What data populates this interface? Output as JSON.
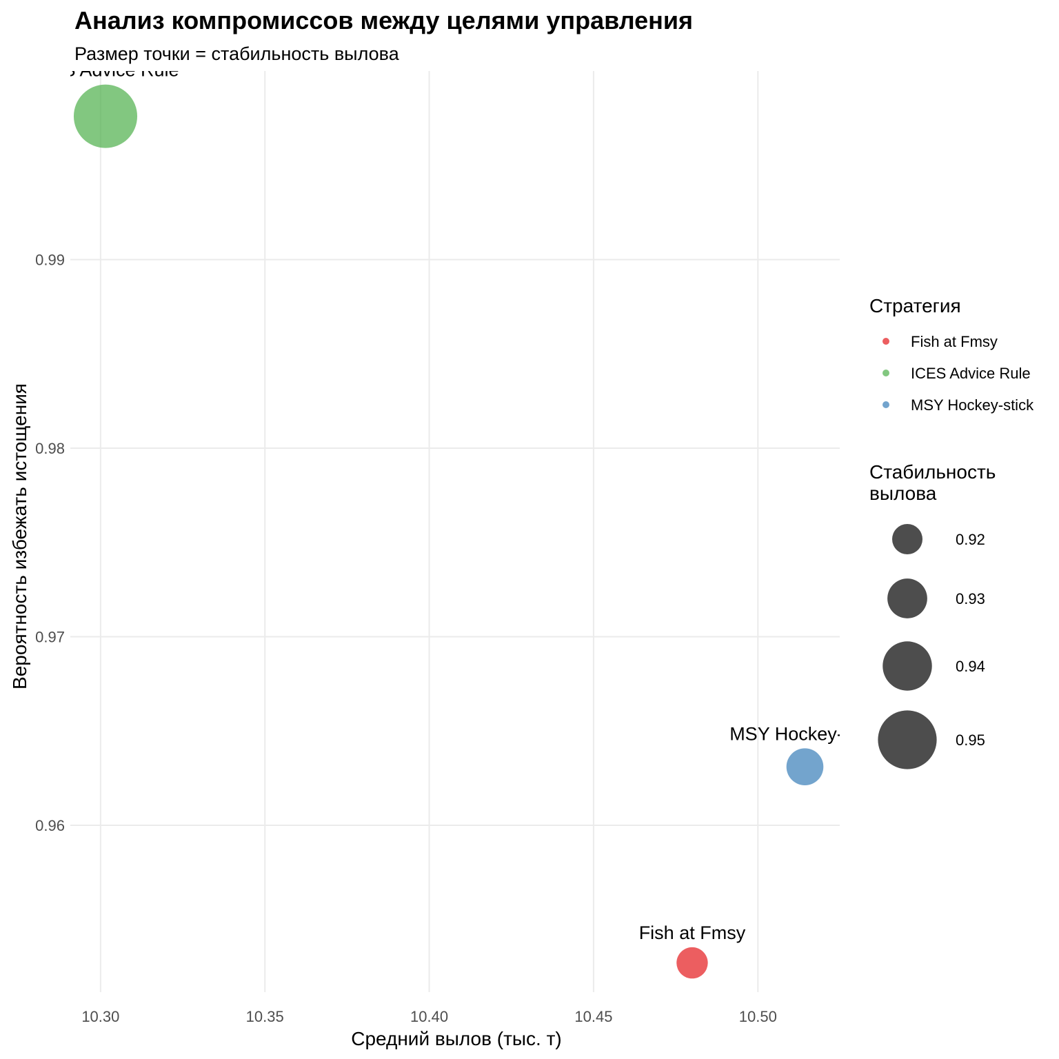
{
  "chart_data": {
    "type": "scatter",
    "title": "Анализ компромиссов между целями управления",
    "subtitle": "Размер точки = стабильность вылова",
    "xlabel": "Средний вылов (тыс. т)",
    "ylabel": "Вероятность избежать истощения",
    "x_ticks": [
      10.3,
      10.35,
      10.4,
      10.45,
      10.5
    ],
    "x_tick_labels": [
      "10.30",
      "10.35",
      "10.40",
      "10.45",
      "10.50"
    ],
    "y_ticks": [
      0.96,
      0.97,
      0.98,
      0.99
    ],
    "y_tick_labels": [
      "0.96",
      "0.97",
      "0.98",
      "0.99"
    ],
    "xlim": [
      10.2908,
      10.5249
    ],
    "ylim": [
      0.95115,
      1.0
    ],
    "grid": true,
    "points": [
      {
        "label": "ICES Advice Rule",
        "x": 10.3015,
        "y": 0.9976,
        "size": 0.955,
        "color": "#4DAF4A"
      },
      {
        "label": "MSY Hockey-stick",
        "x": 10.5143,
        "y": 0.9631,
        "size": 0.927,
        "color": "#377EB8"
      },
      {
        "label": "Fish at Fmsy",
        "x": 10.48,
        "y": 0.9527,
        "size": 0.921,
        "color": "#E41A1C"
      }
    ],
    "color_legend": {
      "title": "Стратегия",
      "position": "right",
      "items": [
        {
          "label": "Fish at Fmsy",
          "color": "#E41A1C"
        },
        {
          "label": "ICES Advice Rule",
          "color": "#4DAF4A"
        },
        {
          "label": "MSY Hockey-stick",
          "color": "#377EB8"
        }
      ]
    },
    "size_legend": {
      "title_lines": [
        "Стабильность",
        "вылова"
      ],
      "position": "right",
      "color": "#4d4d4d",
      "items": [
        {
          "label": "0.92",
          "value": 0.92
        },
        {
          "label": "0.93",
          "value": 0.93
        },
        {
          "label": "0.94",
          "value": 0.94
        },
        {
          "label": "0.95",
          "value": 0.95
        }
      ]
    }
  }
}
